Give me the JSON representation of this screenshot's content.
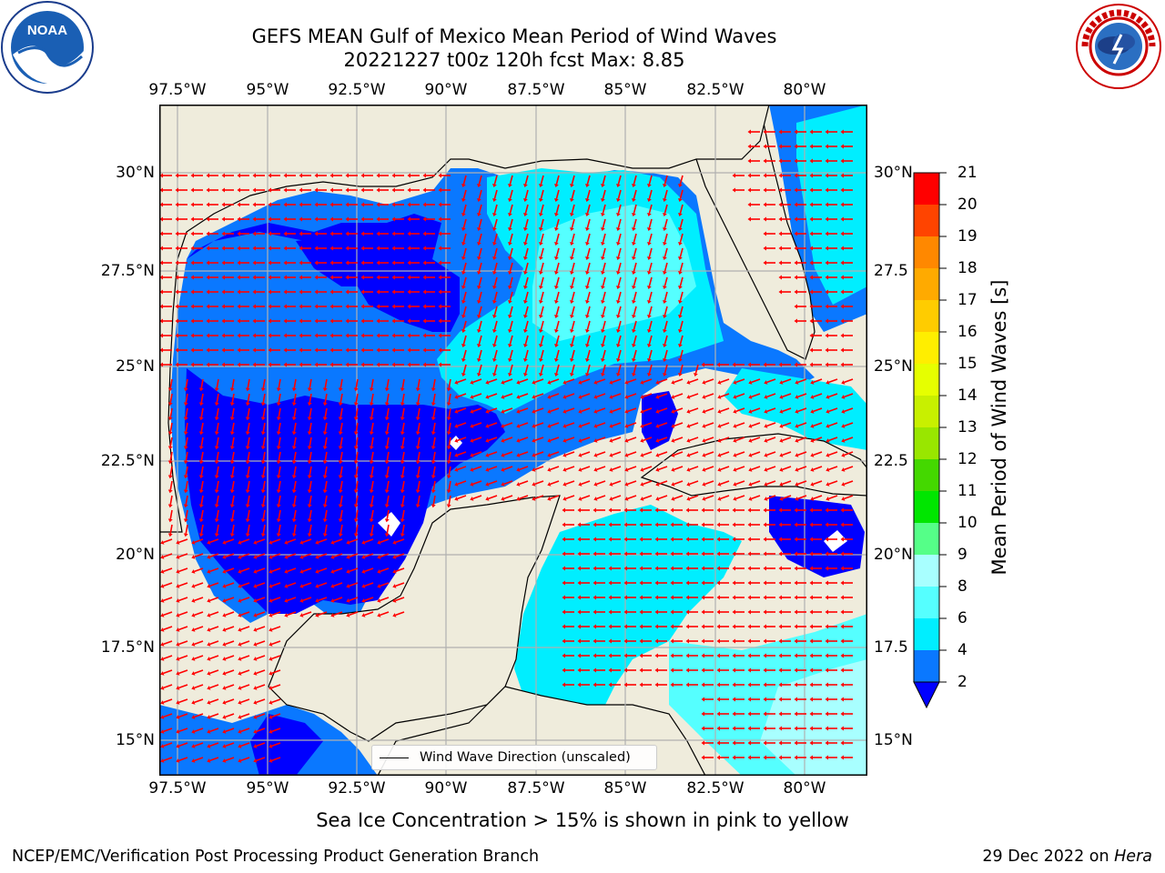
{
  "header": {
    "title_line1": "GEFS MEAN Gulf of Mexico Mean Period of Wind Waves",
    "title_line2": "20221227 t00z 120h fcst   Max: 8.85"
  },
  "map": {
    "lon_ticks": [
      "97.5°W",
      "95°W",
      "92.5°W",
      "90°W",
      "87.5°W",
      "85°W",
      "82.5°W",
      "80°W"
    ],
    "lat_ticks": [
      "30°N",
      "27.5°N",
      "25°N",
      "22.5°N",
      "20°N",
      "17.5°N",
      "15°N"
    ],
    "lat_ticks_right": [
      "30°N",
      "27.5",
      "25°N",
      "22.5",
      "20°N",
      "17.5",
      "15°N"
    ],
    "land_color": "#efecdc",
    "grid": true,
    "legend_label": "Wind Wave Direction (unscaled)",
    "arrow_color": "#ff0000"
  },
  "colorbar": {
    "label": "Mean Period of Wind Waves [s]",
    "ticks": [
      "2",
      "4",
      "6",
      "8",
      "9",
      "10",
      "11",
      "12",
      "13",
      "14",
      "15",
      "16",
      "17",
      "18",
      "19",
      "20",
      "21"
    ],
    "colors": [
      "#0000ff",
      "#0a78ff",
      "#00eeff",
      "#55ffff",
      "#a8ffff",
      "#55ff88",
      "#00e600",
      "#44d800",
      "#99e600",
      "#c8f000",
      "#e6ff00",
      "#ffee00",
      "#ffcc00",
      "#ffaa00",
      "#ff8800",
      "#ff4400",
      "#ff0000"
    ]
  },
  "note": "Sea Ice Concentration > 15% is shown in pink to yellow",
  "footer": {
    "left": "NCEP/EMC/Verification Post Processing Product Generation Branch",
    "right_date": "29 Dec 2022 on",
    "right_host": "Hera"
  },
  "logos": {
    "noaa_text": "NOAA",
    "nws_text": "NATIONAL WEATHER SERVICE"
  }
}
